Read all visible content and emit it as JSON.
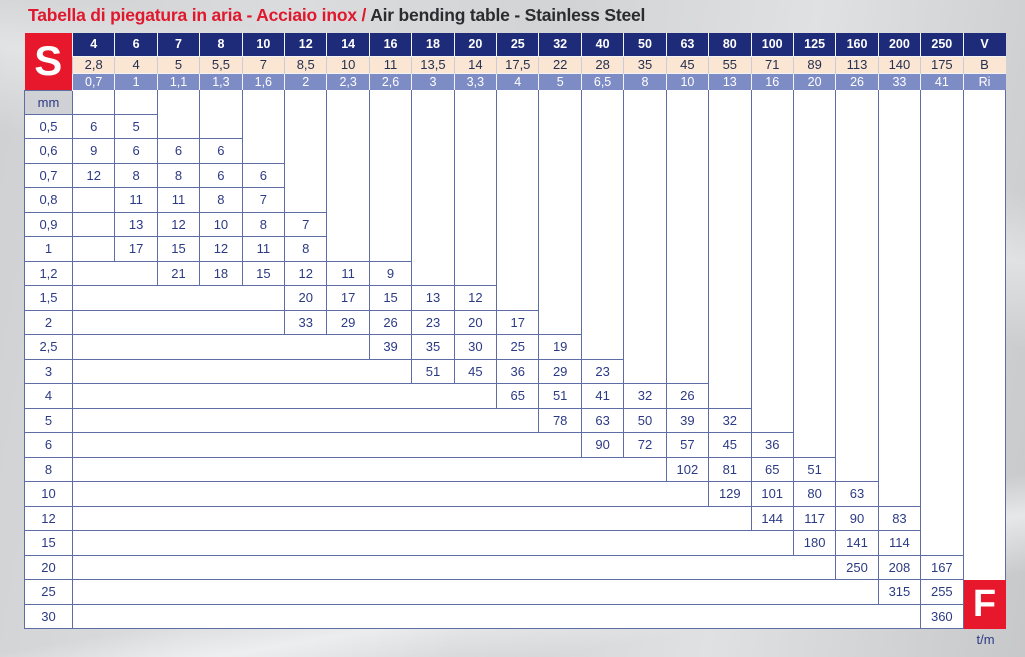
{
  "title": {
    "italian": "Tabella di piegatura in aria - Acciaio inox /",
    "english": "Air bending table - Stainless Steel"
  },
  "table": {
    "s_label": "S",
    "unit_label": "mm",
    "f_label": "F",
    "f_unit_label": "t/m",
    "header": {
      "v_label": "V",
      "b_label": "B",
      "ri_label": "Ri",
      "v_values": [
        "4",
        "6",
        "7",
        "8",
        "10",
        "12",
        "14",
        "16",
        "18",
        "20",
        "25",
        "32",
        "40",
        "50",
        "63",
        "80",
        "100",
        "125",
        "160",
        "200",
        "250"
      ],
      "b_values": [
        "2,8",
        "4",
        "5",
        "5,5",
        "7",
        "8,5",
        "10",
        "11",
        "13,5",
        "14",
        "17,5",
        "22",
        "28",
        "35",
        "45",
        "55",
        "71",
        "89",
        "113",
        "140",
        "175"
      ],
      "ri_values": [
        "0,7",
        "1",
        "1,1",
        "1,3",
        "1,6",
        "2",
        "2,3",
        "2,6",
        "3",
        "3,3",
        "4",
        "5",
        "6,5",
        "8",
        "10",
        "13",
        "16",
        "20",
        "26",
        "33",
        "41"
      ]
    },
    "rows": [
      {
        "s": "0,5",
        "values": [
          "6",
          "5",
          null,
          null,
          null,
          null,
          null,
          null,
          null,
          null,
          null,
          null,
          null,
          null,
          null,
          null,
          null,
          null,
          null,
          null,
          null
        ]
      },
      {
        "s": "0,6",
        "values": [
          "9",
          "6",
          "6",
          "6",
          null,
          null,
          null,
          null,
          null,
          null,
          null,
          null,
          null,
          null,
          null,
          null,
          null,
          null,
          null,
          null,
          null
        ]
      },
      {
        "s": "0,7",
        "values": [
          "12",
          "8",
          "8",
          "6",
          "6",
          null,
          null,
          null,
          null,
          null,
          null,
          null,
          null,
          null,
          null,
          null,
          null,
          null,
          null,
          null,
          null
        ]
      },
      {
        "s": "0,8",
        "values": [
          null,
          "11",
          "11",
          "8",
          "7",
          null,
          null,
          null,
          null,
          null,
          null,
          null,
          null,
          null,
          null,
          null,
          null,
          null,
          null,
          null,
          null
        ]
      },
      {
        "s": "0,9",
        "values": [
          null,
          "13",
          "12",
          "10",
          "8",
          "7",
          null,
          null,
          null,
          null,
          null,
          null,
          null,
          null,
          null,
          null,
          null,
          null,
          null,
          null,
          null
        ]
      },
      {
        "s": "1",
        "values": [
          null,
          "17",
          "15",
          "12",
          "11",
          "8",
          null,
          null,
          null,
          null,
          null,
          null,
          null,
          null,
          null,
          null,
          null,
          null,
          null,
          null,
          null
        ]
      },
      {
        "s": "1,2",
        "values": [
          null,
          null,
          "21",
          "18",
          "15",
          "12",
          "11",
          "9",
          null,
          null,
          null,
          null,
          null,
          null,
          null,
          null,
          null,
          null,
          null,
          null,
          null
        ]
      },
      {
        "s": "1,5",
        "values": [
          null,
          null,
          null,
          null,
          null,
          "20",
          "17",
          "15",
          "13",
          "12",
          null,
          null,
          null,
          null,
          null,
          null,
          null,
          null,
          null,
          null,
          null
        ]
      },
      {
        "s": "2",
        "values": [
          null,
          null,
          null,
          null,
          null,
          "33",
          "29",
          "26",
          "23",
          "20",
          "17",
          null,
          null,
          null,
          null,
          null,
          null,
          null,
          null,
          null,
          null
        ]
      },
      {
        "s": "2,5",
        "values": [
          null,
          null,
          null,
          null,
          null,
          null,
          null,
          "39",
          "35",
          "30",
          "25",
          "19",
          null,
          null,
          null,
          null,
          null,
          null,
          null,
          null,
          null
        ]
      },
      {
        "s": "3",
        "values": [
          null,
          null,
          null,
          null,
          null,
          null,
          null,
          null,
          "51",
          "45",
          "36",
          "29",
          "23",
          null,
          null,
          null,
          null,
          null,
          null,
          null,
          null
        ]
      },
      {
        "s": "4",
        "values": [
          null,
          null,
          null,
          null,
          null,
          null,
          null,
          null,
          null,
          null,
          "65",
          "51",
          "41",
          "32",
          "26",
          null,
          null,
          null,
          null,
          null,
          null
        ]
      },
      {
        "s": "5",
        "values": [
          null,
          null,
          null,
          null,
          null,
          null,
          null,
          null,
          null,
          null,
          null,
          "78",
          "63",
          "50",
          "39",
          "32",
          null,
          null,
          null,
          null,
          null
        ]
      },
      {
        "s": "6",
        "values": [
          null,
          null,
          null,
          null,
          null,
          null,
          null,
          null,
          null,
          null,
          null,
          null,
          "90",
          "72",
          "57",
          "45",
          "36",
          null,
          null,
          null,
          null
        ]
      },
      {
        "s": "8",
        "values": [
          null,
          null,
          null,
          null,
          null,
          null,
          null,
          null,
          null,
          null,
          null,
          null,
          null,
          null,
          "102",
          "81",
          "65",
          "51",
          null,
          null,
          null
        ]
      },
      {
        "s": "10",
        "values": [
          null,
          null,
          null,
          null,
          null,
          null,
          null,
          null,
          null,
          null,
          null,
          null,
          null,
          null,
          null,
          "129",
          "101",
          "80",
          "63",
          null,
          null
        ]
      },
      {
        "s": "12",
        "values": [
          null,
          null,
          null,
          null,
          null,
          null,
          null,
          null,
          null,
          null,
          null,
          null,
          null,
          null,
          null,
          null,
          "144",
          "117",
          "90",
          "83",
          null
        ]
      },
      {
        "s": "15",
        "values": [
          null,
          null,
          null,
          null,
          null,
          null,
          null,
          null,
          null,
          null,
          null,
          null,
          null,
          null,
          null,
          null,
          null,
          "180",
          "141",
          "114",
          null
        ]
      },
      {
        "s": "20",
        "values": [
          null,
          null,
          null,
          null,
          null,
          null,
          null,
          null,
          null,
          null,
          null,
          null,
          null,
          null,
          null,
          null,
          null,
          null,
          "250",
          "208",
          "167"
        ]
      },
      {
        "s": "25",
        "values": [
          null,
          null,
          null,
          null,
          null,
          null,
          null,
          null,
          null,
          null,
          null,
          null,
          null,
          null,
          null,
          null,
          null,
          null,
          null,
          "315",
          "255"
        ]
      },
      {
        "s": "30",
        "values": [
          null,
          null,
          null,
          null,
          null,
          null,
          null,
          null,
          null,
          null,
          null,
          null,
          null,
          null,
          null,
          null,
          null,
          null,
          null,
          null,
          "360"
        ]
      }
    ]
  },
  "colors": {
    "accent_red": "#e7182c",
    "header_navy": "#1e2b78",
    "header_peach": "#fbe6d3",
    "header_slate": "#7e8cc5",
    "grid_line": "#5e6da6",
    "text_navy": "#2c3a84",
    "title_red": "#e0182d",
    "title_dark": "#2b2b30"
  }
}
